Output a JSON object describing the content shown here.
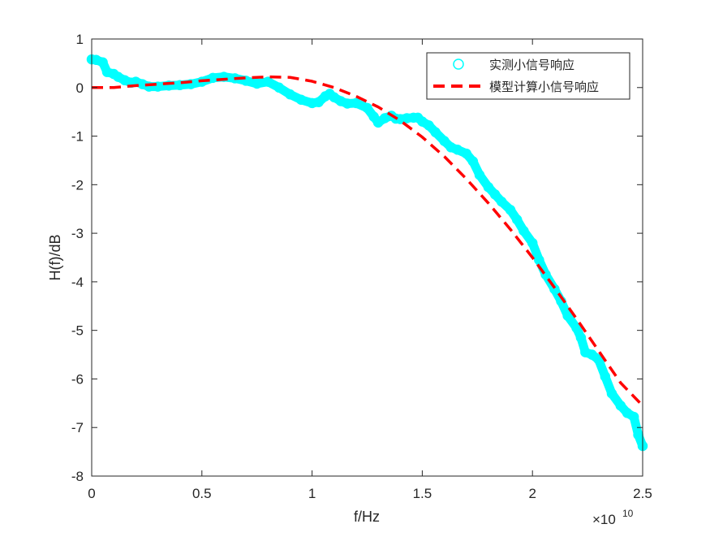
{
  "chart_data": {
    "type": "line",
    "title": "",
    "xlabel": "f/Hz",
    "ylabel": "H(f)/dB",
    "x_exponent_label": "×10",
    "x_exponent_power": "10",
    "xlim": [
      0,
      2.5
    ],
    "ylim": [
      -8,
      1
    ],
    "x_ticks": [
      0,
      0.5,
      1,
      1.5,
      2,
      2.5
    ],
    "x_tick_labels": [
      "0",
      "0.5",
      "1",
      "1.5",
      "2",
      "2.5"
    ],
    "y_ticks": [
      1,
      0,
      -1,
      -2,
      -3,
      -4,
      -5,
      -6,
      -7,
      -8
    ],
    "y_tick_labels": [
      "1",
      "0",
      "-1",
      "-2",
      "-3",
      "-4",
      "-5",
      "-6",
      "-7",
      "-8"
    ],
    "grid": false,
    "legend_position": "top-right",
    "series": [
      {
        "name": "实测小信号响应",
        "color": "#00ffff",
        "marker": "circle",
        "x": [
          0,
          0.02,
          0.05,
          0.07,
          0.1,
          0.12,
          0.15,
          0.18,
          0.2,
          0.23,
          0.26,
          0.3,
          0.35,
          0.4,
          0.45,
          0.5,
          0.55,
          0.6,
          0.65,
          0.7,
          0.75,
          0.8,
          0.85,
          0.9,
          0.95,
          1.0,
          1.03,
          1.06,
          1.08,
          1.1,
          1.13,
          1.16,
          1.2,
          1.25,
          1.28,
          1.3,
          1.33,
          1.36,
          1.38,
          1.4,
          1.43,
          1.46,
          1.48,
          1.5,
          1.53,
          1.56,
          1.6,
          1.63,
          1.66,
          1.7,
          1.73,
          1.76,
          1.8,
          1.83,
          1.86,
          1.9,
          1.93,
          1.96,
          2.0,
          2.03,
          2.06,
          2.1,
          2.13,
          2.16,
          2.2,
          2.22,
          2.24,
          2.27,
          2.3,
          2.33,
          2.36,
          2.4,
          2.43,
          2.46,
          2.48,
          2.5
        ],
        "y": [
          0.58,
          0.57,
          0.52,
          0.32,
          0.28,
          0.22,
          0.15,
          0.1,
          0.12,
          0.07,
          0.02,
          0.02,
          0.04,
          0.05,
          0.07,
          0.12,
          0.2,
          0.22,
          0.19,
          0.14,
          0.08,
          0.12,
          0.0,
          -0.14,
          -0.25,
          -0.32,
          -0.3,
          -0.18,
          -0.13,
          -0.2,
          -0.28,
          -0.33,
          -0.32,
          -0.42,
          -0.6,
          -0.72,
          -0.63,
          -0.58,
          -0.64,
          -0.65,
          -0.63,
          -0.62,
          -0.62,
          -0.7,
          -0.78,
          -0.92,
          -1.1,
          -1.23,
          -1.28,
          -1.36,
          -1.52,
          -1.8,
          -2.05,
          -2.2,
          -2.35,
          -2.52,
          -2.72,
          -2.95,
          -3.2,
          -3.55,
          -3.85,
          -4.15,
          -4.4,
          -4.7,
          -4.95,
          -5.15,
          -5.45,
          -5.5,
          -5.6,
          -5.95,
          -6.3,
          -6.55,
          -6.7,
          -6.78,
          -7.15,
          -7.38
        ]
      },
      {
        "name": "模型计算小信号响应",
        "color": "#ff0000",
        "line_style": "dashed",
        "x": [
          0,
          0.1,
          0.2,
          0.3,
          0.4,
          0.5,
          0.6,
          0.7,
          0.8,
          0.9,
          1.0,
          1.1,
          1.2,
          1.3,
          1.4,
          1.5,
          1.6,
          1.7,
          1.8,
          1.9,
          2.0,
          2.1,
          2.2,
          2.3,
          2.4,
          2.5
        ],
        "y": [
          0,
          0.0,
          0.04,
          0.07,
          0.1,
          0.14,
          0.17,
          0.2,
          0.22,
          0.21,
          0.13,
          0.0,
          -0.18,
          -0.4,
          -0.68,
          -1.02,
          -1.42,
          -1.88,
          -2.38,
          -2.92,
          -3.5,
          -4.12,
          -4.76,
          -5.42,
          -6.08,
          -6.55
        ]
      }
    ]
  }
}
